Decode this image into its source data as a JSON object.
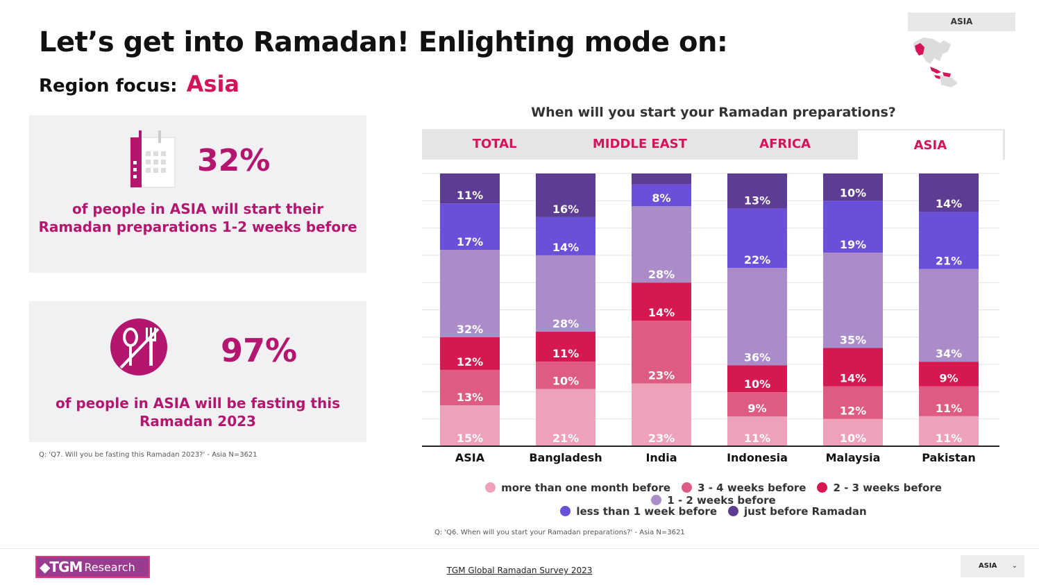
{
  "header": {
    "title": "Let’s get into Ramadan! Enlighting mode on:",
    "subtitle_prefix": "Region focus:",
    "subtitle_region": "Asia"
  },
  "map": {
    "label": "ASIA",
    "highlight_color": "#d4145a"
  },
  "stats": [
    {
      "value": "32%",
      "text_line1": "of people in ASIA will start their",
      "text_line2": "Ramadan preparations 1-2 weeks before",
      "icon": "calendar-icon"
    },
    {
      "value": "97%",
      "text_line1": "of people in ASIA will be fasting this",
      "text_line2": "Ramadan 2023",
      "icon": "no-food-icon"
    }
  ],
  "notes": {
    "left": "Q: 'Q7. Will you be fasting this Ramadan 2023?' - Asia N=3621",
    "right": "Q: 'Q6. When will you start your Ramadan preparations?' - Asia N=3621"
  },
  "tabs": [
    {
      "label": "TOTAL",
      "active": false
    },
    {
      "label": "MIDDLE EAST",
      "active": false
    },
    {
      "label": "AFRICA",
      "active": false
    },
    {
      "label": "ASIA",
      "active": true
    }
  ],
  "chart_data": {
    "type": "bar",
    "stacked": true,
    "title": "When will you start your Ramadan preparations?",
    "categories": [
      "ASIA",
      "Bangladesh",
      "India",
      "Indonesia",
      "Malaysia",
      "Pakistan"
    ],
    "ylim": [
      0,
      100
    ],
    "grid": true,
    "legend_position": "bottom",
    "series": [
      {
        "name": "more than one month before",
        "color": "#eea1b9",
        "values": [
          15,
          21,
          23,
          11,
          10,
          11
        ],
        "labels": [
          "15%",
          "21%",
          "23%",
          "11%",
          "10%",
          "11%"
        ]
      },
      {
        "name": "3 - 4 weeks before",
        "color": "#de5c84",
        "values": [
          13,
          10,
          23,
          9,
          12,
          11
        ],
        "labels": [
          "13%",
          "10%",
          "23%",
          "9%",
          "12%",
          "11%"
        ]
      },
      {
        "name": "2 - 3 weeks before",
        "color": "#d5184f",
        "values": [
          12,
          11,
          14,
          10,
          14,
          9
        ],
        "labels": [
          "12%",
          "11%",
          "14%",
          "10%",
          "14%",
          "9%"
        ]
      },
      {
        "name": "1 - 2 weeks before",
        "color": "#a98cc8",
        "values": [
          32,
          28,
          28,
          36,
          35,
          34
        ],
        "labels": [
          "32%",
          "28%",
          "28%",
          "36%",
          "35%",
          "34%"
        ]
      },
      {
        "name": "less than 1 week before",
        "color": "#6a4fd8",
        "values": [
          17,
          14,
          8,
          22,
          19,
          21
        ],
        "labels": [
          "17%",
          "14%",
          "8%",
          "22%",
          "19%",
          "21%"
        ]
      },
      {
        "name": "just before Ramadan",
        "color": "#5d3c94",
        "values": [
          11,
          16,
          4,
          13,
          10,
          14
        ],
        "labels": [
          "11%",
          "16%",
          "",
          "13%",
          "10%",
          "14%"
        ]
      }
    ]
  },
  "footer": {
    "logo_mark": "◆TGM",
    "logo_text": "Research",
    "link": "TGM Global Ramadan Survey 2023",
    "region_select": "ASIA"
  }
}
